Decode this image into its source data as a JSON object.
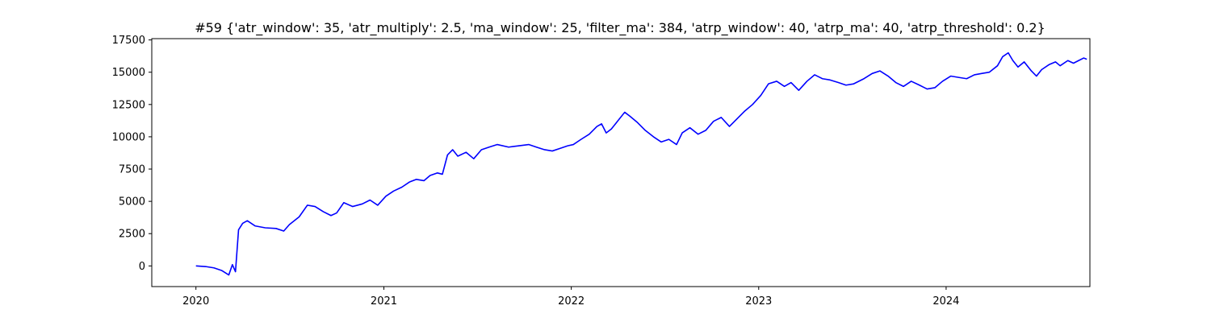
{
  "chart_data": {
    "type": "line",
    "title": "#59 {'atr_window': 35, 'atr_multiply': 2.5, 'ma_window': 25, 'filter_ma': 384, 'atrp_window': 40, 'atrp_ma': 40, 'atrp_threshold': 0.2}",
    "xlabel": "",
    "ylabel": "",
    "xlim": [
      "2019-10-07",
      "2024-10-07"
    ],
    "ylim": [
      -1600,
      17600
    ],
    "grid": false,
    "legend": "none",
    "x_ticks": [
      {
        "value": "2020-01-01",
        "label": "2020"
      },
      {
        "value": "2021-01-01",
        "label": "2021"
      },
      {
        "value": "2022-01-01",
        "label": "2022"
      },
      {
        "value": "2023-01-01",
        "label": "2023"
      },
      {
        "value": "2024-01-01",
        "label": "2024"
      }
    ],
    "y_ticks": [
      {
        "value": 0,
        "label": "0"
      },
      {
        "value": 2500,
        "label": "2500"
      },
      {
        "value": 5000,
        "label": "5000"
      },
      {
        "value": 7500,
        "label": "7500"
      },
      {
        "value": 10000,
        "label": "10000"
      },
      {
        "value": 12500,
        "label": "12500"
      },
      {
        "value": 15000,
        "label": "15000"
      },
      {
        "value": 17500,
        "label": "17500"
      }
    ],
    "series": [
      {
        "color": "#0000ff",
        "points": [
          [
            "2020-01-01",
            0
          ],
          [
            "2020-01-20",
            -50
          ],
          [
            "2020-02-05",
            -150
          ],
          [
            "2020-02-20",
            -350
          ],
          [
            "2020-03-05",
            -700
          ],
          [
            "2020-03-12",
            100
          ],
          [
            "2020-03-18",
            -450
          ],
          [
            "2020-03-24",
            2800
          ],
          [
            "2020-04-01",
            3300
          ],
          [
            "2020-04-10",
            3500
          ],
          [
            "2020-04-25",
            3100
          ],
          [
            "2020-05-15",
            2950
          ],
          [
            "2020-06-05",
            2900
          ],
          [
            "2020-06-20",
            2700
          ],
          [
            "2020-07-01",
            3200
          ],
          [
            "2020-07-20",
            3800
          ],
          [
            "2020-08-05",
            4700
          ],
          [
            "2020-08-20",
            4600
          ],
          [
            "2020-09-05",
            4200
          ],
          [
            "2020-09-20",
            3900
          ],
          [
            "2020-10-01",
            4100
          ],
          [
            "2020-10-15",
            4900
          ],
          [
            "2020-11-01",
            4600
          ],
          [
            "2020-11-20",
            4800
          ],
          [
            "2020-12-05",
            5100
          ],
          [
            "2020-12-20",
            4700
          ],
          [
            "2021-01-05",
            5400
          ],
          [
            "2021-01-20",
            5800
          ],
          [
            "2021-02-05",
            6100
          ],
          [
            "2021-02-20",
            6500
          ],
          [
            "2021-03-05",
            6700
          ],
          [
            "2021-03-20",
            6600
          ],
          [
            "2021-04-01",
            7000
          ],
          [
            "2021-04-15",
            7200
          ],
          [
            "2021-04-25",
            7100
          ],
          [
            "2021-05-05",
            8600
          ],
          [
            "2021-05-15",
            9000
          ],
          [
            "2021-05-25",
            8500
          ],
          [
            "2021-06-10",
            8800
          ],
          [
            "2021-06-25",
            8300
          ],
          [
            "2021-07-10",
            9000
          ],
          [
            "2021-07-25",
            9200
          ],
          [
            "2021-08-10",
            9400
          ],
          [
            "2021-09-01",
            9200
          ],
          [
            "2021-09-20",
            9300
          ],
          [
            "2021-10-10",
            9400
          ],
          [
            "2021-10-25",
            9200
          ],
          [
            "2021-11-10",
            9000
          ],
          [
            "2021-11-25",
            8900
          ],
          [
            "2021-12-10",
            9100
          ],
          [
            "2021-12-25",
            9300
          ],
          [
            "2022-01-05",
            9400
          ],
          [
            "2022-01-20",
            9800
          ],
          [
            "2022-02-05",
            10200
          ],
          [
            "2022-02-20",
            10800
          ],
          [
            "2022-03-01",
            11000
          ],
          [
            "2022-03-10",
            10300
          ],
          [
            "2022-03-20",
            10600
          ],
          [
            "2022-04-01",
            11200
          ],
          [
            "2022-04-15",
            11900
          ],
          [
            "2022-04-25",
            11600
          ],
          [
            "2022-05-10",
            11100
          ],
          [
            "2022-05-25",
            10500
          ],
          [
            "2022-06-10",
            10000
          ],
          [
            "2022-06-25",
            9600
          ],
          [
            "2022-07-10",
            9800
          ],
          [
            "2022-07-25",
            9400
          ],
          [
            "2022-08-05",
            10300
          ],
          [
            "2022-08-20",
            10700
          ],
          [
            "2022-09-05",
            10200
          ],
          [
            "2022-09-20",
            10500
          ],
          [
            "2022-10-05",
            11200
          ],
          [
            "2022-10-20",
            11500
          ],
          [
            "2022-11-05",
            10800
          ],
          [
            "2022-11-20",
            11400
          ],
          [
            "2022-12-05",
            12000
          ],
          [
            "2022-12-20",
            12500
          ],
          [
            "2023-01-05",
            13200
          ],
          [
            "2023-01-20",
            14100
          ],
          [
            "2023-02-05",
            14300
          ],
          [
            "2023-02-20",
            13900
          ],
          [
            "2023-03-05",
            14200
          ],
          [
            "2023-03-20",
            13600
          ],
          [
            "2023-04-05",
            14300
          ],
          [
            "2023-04-20",
            14800
          ],
          [
            "2023-05-05",
            14500
          ],
          [
            "2023-05-20",
            14400
          ],
          [
            "2023-06-05",
            14200
          ],
          [
            "2023-06-20",
            14000
          ],
          [
            "2023-07-05",
            14100
          ],
          [
            "2023-07-25",
            14500
          ],
          [
            "2023-08-10",
            14900
          ],
          [
            "2023-08-25",
            15100
          ],
          [
            "2023-09-10",
            14700
          ],
          [
            "2023-09-25",
            14200
          ],
          [
            "2023-10-10",
            13900
          ],
          [
            "2023-10-25",
            14300
          ],
          [
            "2023-11-10",
            14000
          ],
          [
            "2023-11-25",
            13700
          ],
          [
            "2023-12-10",
            13800
          ],
          [
            "2023-12-25",
            14300
          ],
          [
            "2024-01-10",
            14700
          ],
          [
            "2024-01-25",
            14600
          ],
          [
            "2024-02-10",
            14500
          ],
          [
            "2024-02-25",
            14800
          ],
          [
            "2024-03-10",
            14900
          ],
          [
            "2024-03-25",
            15000
          ],
          [
            "2024-04-10",
            15500
          ],
          [
            "2024-04-20",
            16200
          ],
          [
            "2024-05-01",
            16500
          ],
          [
            "2024-05-10",
            15900
          ],
          [
            "2024-05-20",
            15400
          ],
          [
            "2024-06-01",
            15800
          ],
          [
            "2024-06-15",
            15100
          ],
          [
            "2024-06-25",
            14700
          ],
          [
            "2024-07-05",
            15200
          ],
          [
            "2024-07-20",
            15600
          ],
          [
            "2024-08-01",
            15800
          ],
          [
            "2024-08-10",
            15500
          ],
          [
            "2024-08-25",
            15900
          ],
          [
            "2024-09-05",
            15700
          ],
          [
            "2024-09-15",
            15900
          ],
          [
            "2024-09-25",
            16100
          ],
          [
            "2024-10-01",
            16000
          ]
        ]
      }
    ]
  }
}
